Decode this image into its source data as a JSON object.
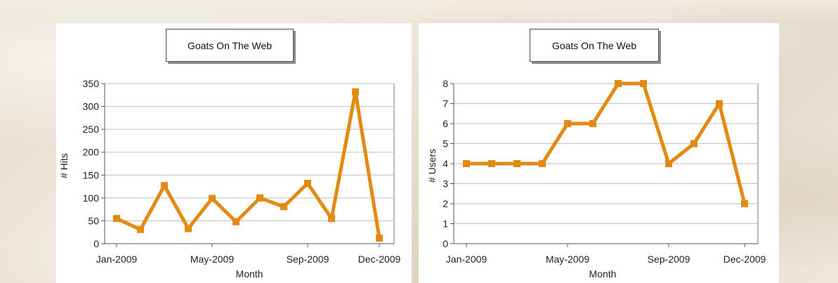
{
  "chart_data": [
    {
      "type": "line",
      "title": "Goats On The Web",
      "xlabel": "Month",
      "ylabel": "# Hits",
      "ylim": [
        0,
        350
      ],
      "yticks": [
        0,
        50,
        100,
        150,
        200,
        250,
        300,
        350
      ],
      "x_tick_labels": [
        "Jan-2009",
        "May-2009",
        "Sep-2009",
        "Dec-2009"
      ],
      "x": [
        "Jan-2009",
        "Feb-2009",
        "Mar-2009",
        "Apr-2009",
        "May-2009",
        "Jun-2009",
        "Jul-2009",
        "Aug-2009",
        "Sep-2009",
        "Oct-2009",
        "Nov-2009",
        "Dec-2009"
      ],
      "series": [
        {
          "values": [
            55,
            31,
            127,
            33,
            99,
            48,
            100,
            81,
            132,
            55,
            332,
            12
          ]
        }
      ],
      "line_color": "#e28a12",
      "grid": true
    },
    {
      "type": "line",
      "title": "Goats On The Web",
      "xlabel": "Month",
      "ylabel": "# Users",
      "ylim": [
        0,
        8
      ],
      "yticks": [
        0,
        1,
        2,
        3,
        4,
        5,
        6,
        7,
        8
      ],
      "x_tick_labels": [
        "Jan-2009",
        "May-2009",
        "Sep-2009",
        "Dec-2009"
      ],
      "x": [
        "Jan-2009",
        "Feb-2009",
        "Mar-2009",
        "Apr-2009",
        "May-2009",
        "Jun-2009",
        "Jul-2009",
        "Aug-2009",
        "Sep-2009",
        "Oct-2009",
        "Nov-2009",
        "Dec-2009"
      ],
      "series": [
        {
          "values": [
            4,
            4,
            4,
            4,
            6,
            6,
            8,
            8,
            4,
            5,
            7,
            2
          ]
        }
      ],
      "line_color": "#e28a12",
      "grid": true
    }
  ]
}
